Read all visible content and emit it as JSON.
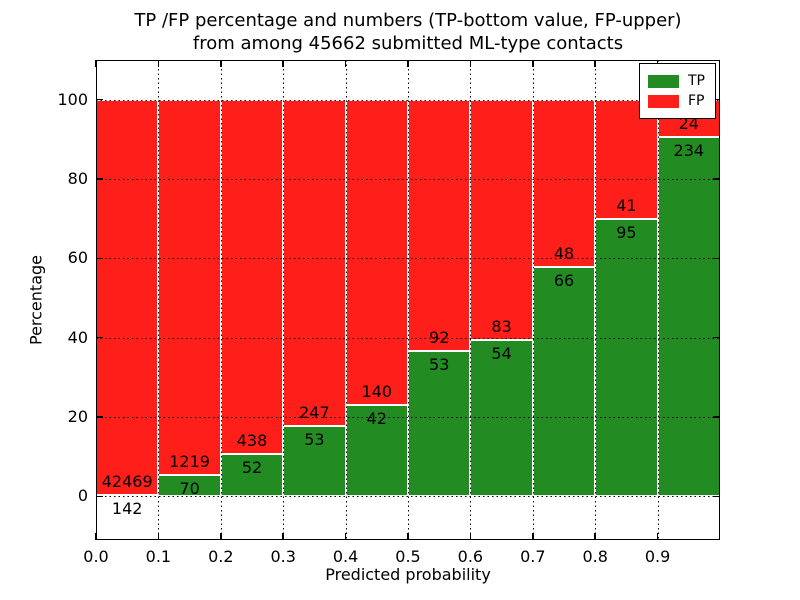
{
  "chart_data": {
    "type": "bar",
    "stacked": true,
    "normalized_to_percent": true,
    "title": "TP /FP percentage and numbers (TP-bottom value, FP-upper)\nfrom among 45662 submitted ML-type contacts",
    "total_submitted_contacts": 45662,
    "xlabel": "Predicted probability",
    "ylabel": "Percentage",
    "categories": [
      "0.0-0.1",
      "0.1-0.2",
      "0.2-0.3",
      "0.3-0.4",
      "0.4-0.5",
      "0.5-0.6",
      "0.6-0.7",
      "0.7-0.8",
      "0.8-0.9",
      "0.9-1.0"
    ],
    "series": [
      {
        "name": "TP",
        "color": "#228b22",
        "values": [
          142,
          70,
          52,
          53,
          42,
          53,
          54,
          66,
          95,
          234
        ]
      },
      {
        "name": "FP",
        "color": "#ff1f1a",
        "values": [
          42469,
          1219,
          438,
          247,
          140,
          92,
          83,
          48,
          41,
          24
        ]
      }
    ],
    "tp_percent_heights": [
      0.33,
      5.43,
      10.61,
      17.67,
      23.08,
      36.55,
      39.42,
      57.89,
      69.85,
      90.7
    ],
    "x_ticks": [
      "0.0",
      "0.1",
      "0.2",
      "0.3",
      "0.4",
      "0.5",
      "0.6",
      "0.7",
      "0.8",
      "0.9"
    ],
    "y_ticks": [
      0,
      20,
      40,
      60,
      80,
      100
    ],
    "xlim": [
      0,
      1
    ],
    "ylim": [
      -11,
      110
    ],
    "grid": "dotted",
    "bar_edge_color": "#ffffff",
    "text_color": "#000000",
    "background_color": "#ffffff",
    "legend_position": "upper right",
    "legend": [
      "TP",
      "FP"
    ]
  }
}
